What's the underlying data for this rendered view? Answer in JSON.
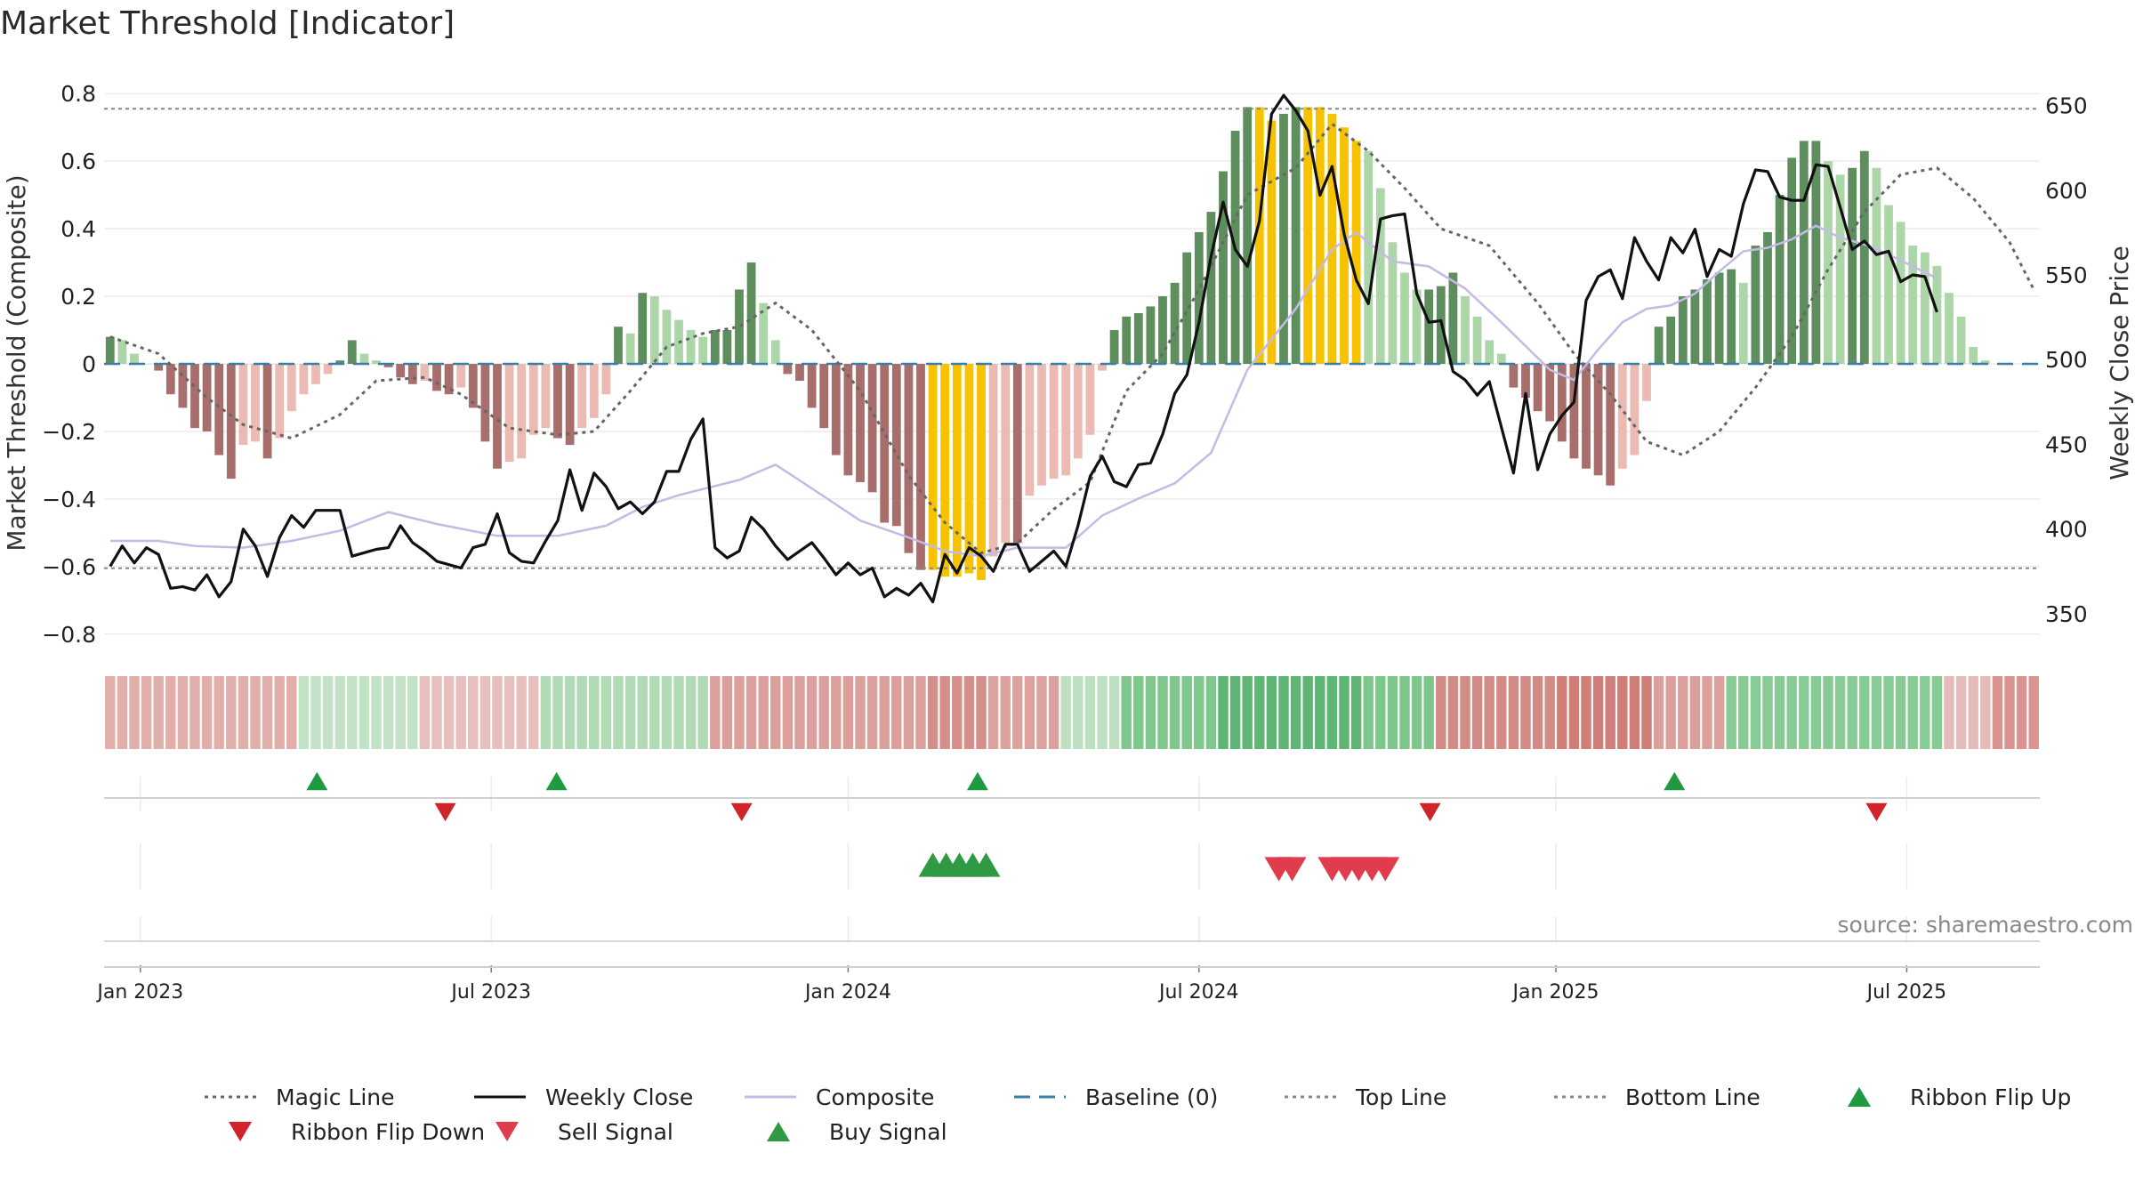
{
  "chart_data": {
    "type": "bar",
    "title": "Market Threshold [Indicator]",
    "ylabel": "Market Threshold (Composite)",
    "y2label": "Weekly Close Price",
    "ylim": [
      -0.84,
      0.84
    ],
    "y2lim": [
      330,
      665
    ],
    "yticks": [
      0.8,
      0.6,
      0.4,
      0.2,
      0,
      -0.2,
      -0.4,
      -0.6,
      -0.8
    ],
    "ytick_labels": [
      "0.8",
      "0.6",
      "0.4",
      "0.2",
      "0",
      "−0.2",
      "−0.4",
      "−0.6",
      "−0.8"
    ],
    "y2ticks": [
      650,
      600,
      550,
      500,
      450,
      400,
      350
    ],
    "y2tick_labels": [
      "650",
      "600",
      "550",
      "500",
      "450",
      "400",
      "350"
    ],
    "x_tick_labels": [
      "Jan 2023",
      "Jul 2023",
      "Jan 2024",
      "Jul 2024",
      "Jan 2025",
      "Jul 2025"
    ],
    "x_tick_weeks": [
      3,
      32,
      61.5,
      90.5,
      120,
      149
    ],
    "top_line": 0.755,
    "bottom_line": -0.605,
    "n_weeks": 160,
    "bars": [
      0.08,
      0.07,
      0.03,
      0,
      -0.02,
      -0.09,
      -0.13,
      -0.19,
      -0.2,
      -0.27,
      -0.34,
      -0.24,
      -0.23,
      -0.28,
      -0.22,
      -0.14,
      -0.09,
      -0.06,
      -0.03,
      0.01,
      0.07,
      0.03,
      0.01,
      -0.01,
      -0.04,
      -0.06,
      -0.05,
      -0.08,
      -0.09,
      -0.07,
      -0.13,
      -0.23,
      -0.31,
      -0.29,
      -0.28,
      -0.21,
      -0.19,
      -0.22,
      -0.24,
      -0.19,
      -0.16,
      -0.09,
      0.11,
      0.09,
      0.21,
      0.2,
      0.16,
      0.13,
      0.1,
      0.08,
      0.1,
      0.1,
      0.22,
      0.3,
      0.18,
      0.07,
      -0.03,
      -0.05,
      -0.13,
      -0.19,
      -0.27,
      -0.33,
      -0.35,
      -0.38,
      -0.47,
      -0.48,
      -0.56,
      -0.61,
      -0.61,
      -0.63,
      -0.63,
      -0.62,
      -0.64,
      -0.57,
      -0.53,
      -0.53,
      -0.39,
      -0.36,
      -0.34,
      -0.33,
      -0.28,
      -0.21,
      -0.02,
      0.1,
      0.14,
      0.15,
      0.17,
      0.2,
      0.24,
      0.33,
      0.39,
      0.45,
      0.57,
      0.69,
      0.76,
      0.76,
      0.72,
      0.74,
      0.76,
      0.76,
      0.76,
      0.74,
      0.7,
      0.66,
      0.63,
      0.52,
      0.36,
      0.27,
      0.22,
      0.22,
      0.23,
      0.27,
      0.2,
      0.14,
      0.07,
      0.03,
      -0.07,
      -0.1,
      -0.14,
      -0.17,
      -0.23,
      -0.28,
      -0.31,
      -0.33,
      -0.36,
      -0.31,
      -0.27,
      -0.11,
      0.11,
      0.14,
      0.2,
      0.22,
      0.25,
      0.27,
      0.28,
      0.24,
      0.35,
      0.39,
      0.5,
      0.61,
      0.66,
      0.66,
      0.6,
      0.56,
      0.58,
      0.63,
      0.58,
      0.47,
      0.42,
      0.35,
      0.33,
      0.29,
      0.21,
      0.14,
      0.05,
      0.01
    ],
    "highlight_weeks": [
      68,
      69,
      70,
      71,
      72,
      95,
      96,
      99,
      100,
      101,
      102,
      103
    ],
    "magic_line": [
      [
        0,
        0.08
      ],
      [
        4,
        0.03
      ],
      [
        8,
        -0.1
      ],
      [
        11,
        -0.18
      ],
      [
        15,
        -0.22
      ],
      [
        19,
        -0.15
      ],
      [
        22,
        -0.05
      ],
      [
        26,
        -0.04
      ],
      [
        29,
        -0.09
      ],
      [
        33,
        -0.19
      ],
      [
        37,
        -0.21
      ],
      [
        40,
        -0.2
      ],
      [
        43,
        -0.08
      ],
      [
        46,
        0.05
      ],
      [
        49,
        0.09
      ],
      [
        52,
        0.11
      ],
      [
        55,
        0.18
      ],
      [
        58,
        0.1
      ],
      [
        62,
        -0.08
      ],
      [
        66,
        -0.33
      ],
      [
        69,
        -0.47
      ],
      [
        72,
        -0.56
      ],
      [
        75,
        -0.53
      ],
      [
        78,
        -0.43
      ],
      [
        81,
        -0.35
      ],
      [
        84,
        -0.08
      ],
      [
        87,
        0.03
      ],
      [
        90,
        0.22
      ],
      [
        94,
        0.5
      ],
      [
        98,
        0.58
      ],
      [
        101,
        0.71
      ],
      [
        104,
        0.63
      ],
      [
        107,
        0.52
      ],
      [
        110,
        0.4
      ],
      [
        114,
        0.35
      ],
      [
        118,
        0.18
      ],
      [
        121,
        0.03
      ],
      [
        124,
        -0.09
      ],
      [
        127,
        -0.23
      ],
      [
        130,
        -0.27
      ],
      [
        133,
        -0.2
      ],
      [
        136,
        -0.07
      ],
      [
        139,
        0.08
      ],
      [
        142,
        0.28
      ],
      [
        145,
        0.45
      ],
      [
        148,
        0.56
      ],
      [
        151,
        0.58
      ],
      [
        154,
        0.49
      ],
      [
        157,
        0.36
      ],
      [
        159,
        0.22
      ]
    ],
    "weekly_close": [
      [
        0,
        378
      ],
      [
        1,
        390
      ],
      [
        2,
        380
      ],
      [
        3,
        389
      ],
      [
        4,
        385
      ],
      [
        5,
        365
      ],
      [
        6,
        366
      ],
      [
        7,
        364
      ],
      [
        8,
        373
      ],
      [
        9,
        360
      ],
      [
        10,
        369
      ],
      [
        11,
        400
      ],
      [
        12,
        390
      ],
      [
        13,
        372
      ],
      [
        14,
        395
      ],
      [
        15,
        408
      ],
      [
        16,
        401
      ],
      [
        17,
        411
      ],
      [
        18,
        411
      ],
      [
        19,
        411
      ],
      [
        20,
        384
      ],
      [
        21,
        386
      ],
      [
        22,
        388
      ],
      [
        23,
        389
      ],
      [
        24,
        402
      ],
      [
        25,
        392
      ],
      [
        26,
        387
      ],
      [
        27,
        381
      ],
      [
        28,
        379
      ],
      [
        29,
        377
      ],
      [
        30,
        389
      ],
      [
        31,
        391
      ],
      [
        32,
        409
      ],
      [
        33,
        386
      ],
      [
        34,
        381
      ],
      [
        35,
        380
      ],
      [
        36,
        393
      ],
      [
        37,
        405
      ],
      [
        38,
        435
      ],
      [
        39,
        411
      ],
      [
        40,
        433
      ],
      [
        41,
        425
      ],
      [
        42,
        412
      ],
      [
        43,
        416
      ],
      [
        44,
        409
      ],
      [
        45,
        416
      ],
      [
        46,
        434
      ],
      [
        47,
        434
      ],
      [
        48,
        453
      ],
      [
        49,
        465
      ],
      [
        50,
        389
      ],
      [
        51,
        383
      ],
      [
        52,
        387
      ],
      [
        53,
        407
      ],
      [
        54,
        400
      ],
      [
        55,
        390
      ],
      [
        56,
        382
      ],
      [
        57,
        387
      ],
      [
        58,
        392
      ],
      [
        59,
        383
      ],
      [
        60,
        373
      ],
      [
        61,
        380
      ],
      [
        62,
        373
      ],
      [
        63,
        377
      ],
      [
        64,
        360
      ],
      [
        65,
        365
      ],
      [
        66,
        361
      ],
      [
        67,
        368
      ],
      [
        68,
        357
      ],
      [
        69,
        385
      ],
      [
        70,
        374
      ],
      [
        71,
        389
      ],
      [
        72,
        384
      ],
      [
        73,
        375
      ],
      [
        74,
        391
      ],
      [
        75,
        391
      ],
      [
        76,
        375
      ],
      [
        77,
        381
      ],
      [
        78,
        387
      ],
      [
        79,
        378
      ],
      [
        80,
        402
      ],
      [
        81,
        431
      ],
      [
        82,
        443
      ],
      [
        83,
        428
      ],
      [
        84,
        425
      ],
      [
        85,
        438
      ],
      [
        86,
        439
      ],
      [
        87,
        456
      ],
      [
        88,
        480
      ],
      [
        89,
        491
      ],
      [
        90,
        522
      ],
      [
        91,
        561
      ],
      [
        92,
        593
      ],
      [
        93,
        565
      ],
      [
        94,
        555
      ],
      [
        95,
        582
      ],
      [
        96,
        645
      ],
      [
        97,
        656
      ],
      [
        98,
        647
      ],
      [
        99,
        635
      ],
      [
        100,
        597
      ],
      [
        101,
        614
      ],
      [
        102,
        574
      ],
      [
        103,
        547
      ],
      [
        104,
        533
      ],
      [
        105,
        583
      ],
      [
        106,
        585
      ],
      [
        107,
        586
      ],
      [
        108,
        539
      ],
      [
        109,
        522
      ],
      [
        110,
        523
      ],
      [
        111,
        493
      ],
      [
        112,
        488
      ],
      [
        113,
        479
      ],
      [
        114,
        487
      ],
      [
        115,
        460
      ],
      [
        116,
        433
      ],
      [
        117,
        480
      ],
      [
        118,
        435
      ],
      [
        119,
        456
      ],
      [
        120,
        467
      ],
      [
        121,
        475
      ],
      [
        122,
        535
      ],
      [
        123,
        549
      ],
      [
        124,
        553
      ],
      [
        125,
        536
      ],
      [
        126,
        572
      ],
      [
        127,
        558
      ],
      [
        128,
        547
      ],
      [
        129,
        572
      ],
      [
        130,
        563
      ],
      [
        131,
        577
      ],
      [
        132,
        549
      ],
      [
        133,
        565
      ],
      [
        134,
        561
      ],
      [
        135,
        592
      ],
      [
        136,
        612
      ],
      [
        137,
        611
      ],
      [
        138,
        596
      ],
      [
        139,
        594
      ],
      [
        140,
        594
      ],
      [
        141,
        615
      ],
      [
        142,
        614
      ],
      [
        143,
        590
      ],
      [
        144,
        565
      ],
      [
        145,
        570
      ],
      [
        146,
        562
      ],
      [
        147,
        564
      ],
      [
        148,
        546
      ],
      [
        149,
        550
      ],
      [
        150,
        549
      ],
      [
        151,
        528
      ]
    ],
    "composite": [
      [
        0,
        393
      ],
      [
        4,
        393
      ],
      [
        7,
        390
      ],
      [
        11,
        389
      ],
      [
        15,
        393
      ],
      [
        19,
        399
      ],
      [
        23,
        410
      ],
      [
        27,
        403
      ],
      [
        32,
        396
      ],
      [
        37,
        396
      ],
      [
        41,
        402
      ],
      [
        44,
        413
      ],
      [
        47,
        420
      ],
      [
        52,
        429
      ],
      [
        55,
        438
      ],
      [
        58,
        424
      ],
      [
        62,
        405
      ],
      [
        66,
        395
      ],
      [
        69,
        387
      ],
      [
        72,
        384
      ],
      [
        75,
        389
      ],
      [
        79,
        389
      ],
      [
        82,
        408
      ],
      [
        85,
        418
      ],
      [
        88,
        427
      ],
      [
        91,
        445
      ],
      [
        94,
        494
      ],
      [
        98,
        530
      ],
      [
        101,
        565
      ],
      [
        103,
        575
      ],
      [
        106,
        558
      ],
      [
        109,
        555
      ],
      [
        112,
        542
      ],
      [
        115,
        522
      ],
      [
        117,
        508
      ],
      [
        119,
        494
      ],
      [
        121,
        488
      ],
      [
        123,
        506
      ],
      [
        125,
        522
      ],
      [
        127,
        530
      ],
      [
        129,
        532
      ],
      [
        131,
        539
      ],
      [
        133,
        552
      ],
      [
        135,
        564
      ],
      [
        137,
        566
      ],
      [
        139,
        571
      ],
      [
        141,
        579
      ],
      [
        143,
        572
      ],
      [
        145,
        568
      ],
      [
        147,
        562
      ],
      [
        149,
        555
      ],
      [
        151,
        548
      ]
    ],
    "ribbon": [
      {
        "start": 0,
        "end": 16,
        "color": "#e1aeaa"
      },
      {
        "start": 16,
        "end": 26,
        "color": "#c3e3c6"
      },
      {
        "start": 26,
        "end": 36,
        "color": "#e7c0bd"
      },
      {
        "start": 36,
        "end": 50,
        "color": "#b0dbb5"
      },
      {
        "start": 50,
        "end": 68,
        "color": "#dba09b"
      },
      {
        "start": 68,
        "end": 73,
        "color": "#d58f8a"
      },
      {
        "start": 73,
        "end": 79,
        "color": "#dca29d"
      },
      {
        "start": 79,
        "end": 84,
        "color": "#bce0c0"
      },
      {
        "start": 84,
        "end": 92,
        "color": "#7fc78c"
      },
      {
        "start": 92,
        "end": 104,
        "color": "#5fb574"
      },
      {
        "start": 104,
        "end": 110,
        "color": "#7ec78a"
      },
      {
        "start": 110,
        "end": 120,
        "color": "#d38b85"
      },
      {
        "start": 120,
        "end": 128,
        "color": "#cf7f78"
      },
      {
        "start": 128,
        "end": 134,
        "color": "#dba09b"
      },
      {
        "start": 134,
        "end": 152,
        "color": "#88cb94"
      },
      {
        "start": 152,
        "end": 156,
        "color": "#e5bbb7"
      },
      {
        "start": 156,
        "end": 160,
        "color": "#d9948f"
      }
    ],
    "ribbon_flip_up": [
      17.6,
      37.4,
      72.2,
      129.8
    ],
    "ribbon_flip_down": [
      28.2,
      52.7,
      109.6,
      146.5
    ],
    "buy_signals": [
      68.5,
      69.6,
      70.7,
      71.8,
      72.9
    ],
    "sell_signals": [
      97.1,
      98.2,
      101.5,
      102.6,
      103.7,
      104.8,
      105.9
    ],
    "legend": [
      {
        "label": "Magic Line",
        "kind": "dotted",
        "color": "#666666"
      },
      {
        "label": "Weekly Close",
        "kind": "solid",
        "color": "#111111"
      },
      {
        "label": "Composite",
        "kind": "solid",
        "color": "#c3bbe6"
      },
      {
        "label": "Baseline (0)",
        "kind": "dashed",
        "color": "#3a7ea8"
      },
      {
        "label": "Top Line",
        "kind": "dotted",
        "color": "#888888"
      },
      {
        "label": "Bottom Line",
        "kind": "dotted",
        "color": "#888888"
      },
      {
        "label": "Ribbon Flip Up",
        "kind": "tri-up",
        "color": "#1f9a40"
      },
      {
        "label": "Ribbon Flip Down",
        "kind": "tri-down",
        "color": "#d0242a"
      },
      {
        "label": "Sell Signal",
        "kind": "tri-down",
        "color": "#e03c4c"
      },
      {
        "label": "Buy Signal",
        "kind": "tri-up",
        "color": "#2f9a43"
      }
    ],
    "source": "source: sharemaestro.com",
    "colors": {
      "bar_pos_dark": "#5e8e5e",
      "bar_pos_light": "#acd6a8",
      "bar_neg_dark": "#a86e6c",
      "bar_neg_light": "#ebbab3",
      "highlight": "#f7c300",
      "magic": "#666666",
      "close": "#111111",
      "composite": "#c3bbe6",
      "baseline": "#3a7ea8",
      "threshold": "#888888",
      "flip_up": "#1f9a40",
      "flip_down": "#d0242a",
      "buy": "#2f9a43",
      "sell": "#e03c4c"
    }
  }
}
